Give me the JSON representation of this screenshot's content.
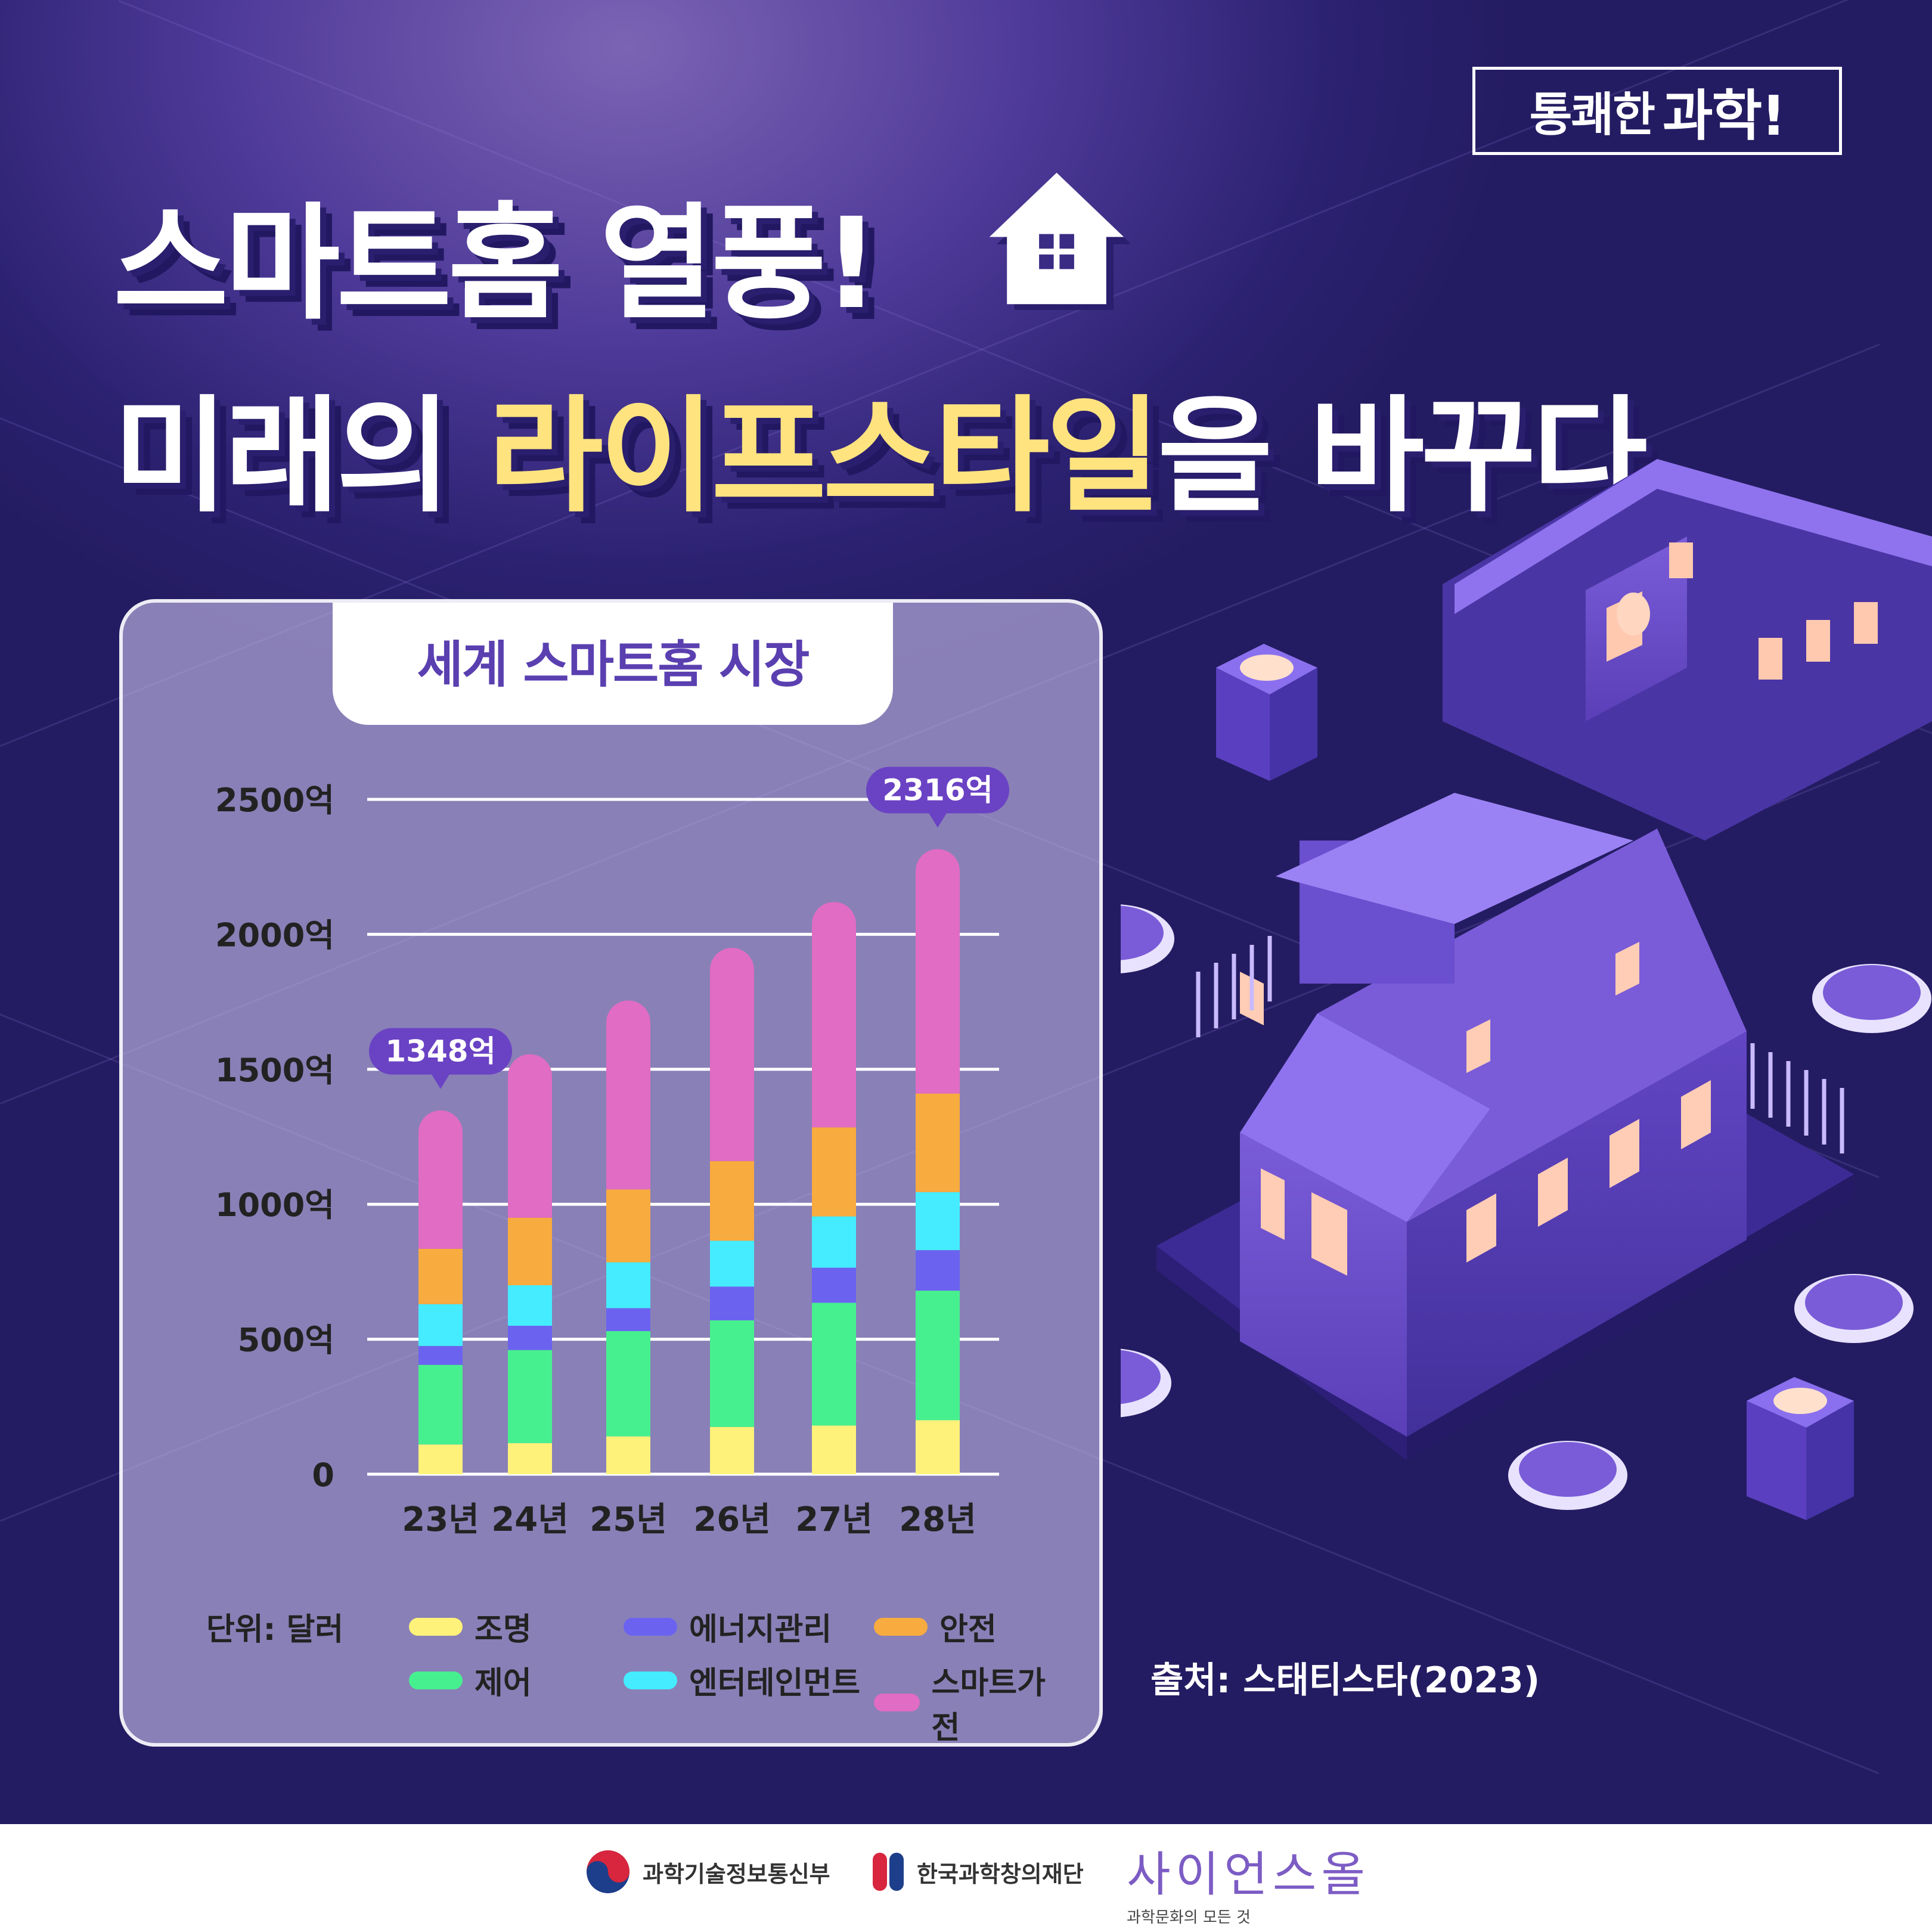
{
  "brand": {
    "part1": "통쾌한",
    "part2": "과학!"
  },
  "headline": {
    "line1": "스마트홈 열풍!",
    "line2_pre": "미래의 ",
    "line2_highlight": "라이프스타일",
    "line2_post": "을 바꾸다"
  },
  "chart_data": {
    "type": "bar",
    "stacked": true,
    "title": "세계 스마트홈 시장",
    "categories": [
      "23년",
      "24년",
      "25년",
      "26년",
      "27년",
      "28년"
    ],
    "ytick_labels": [
      "0",
      "500억",
      "1000억",
      "1500억",
      "2000억",
      "2500억"
    ],
    "yticks": [
      0,
      500,
      1000,
      1500,
      2000,
      2500
    ],
    "ylim": [
      0,
      2500
    ],
    "unit_label": "단위: 달러",
    "series": [
      {
        "name": "조명",
        "color": "#fef27a",
        "values": [
          110,
          115,
          140,
          175,
          180,
          200
        ]
      },
      {
        "name": "제어",
        "color": "#47f08f",
        "values": [
          295,
          345,
          390,
          395,
          455,
          480
        ]
      },
      {
        "name": "에너지관리",
        "color": "#6b63f0",
        "values": [
          70,
          90,
          85,
          125,
          130,
          150
        ]
      },
      {
        "name": "엔터테인먼트",
        "color": "#45ecff",
        "values": [
          155,
          150,
          170,
          170,
          190,
          215
        ]
      },
      {
        "name": "안전",
        "color": "#f8ab3e",
        "values": [
          205,
          250,
          270,
          295,
          330,
          365
        ]
      },
      {
        "name": "스마트가전",
        "color": "#e06cc3",
        "values": [
          513,
          606,
          700,
          790,
          835,
          906
        ]
      }
    ],
    "totals": [
      1348,
      1556,
      1755,
      1950,
      2120,
      2316
    ],
    "annotations": [
      {
        "index": 0,
        "text": "1348억"
      },
      {
        "index": 5,
        "text": "2316억"
      }
    ]
  },
  "source": "출처: 스태티스타(2023)",
  "footer": {
    "org1": "과학기술정보통신부",
    "org2": "한국과학창의재단",
    "org3_logo": "사이언스올",
    "org3_sub": "과학문화의 모든 것"
  },
  "colors": {
    "bg": "#3a2c85",
    "highlight": "#ffe37f",
    "title_purple": "#5a3fb0"
  }
}
